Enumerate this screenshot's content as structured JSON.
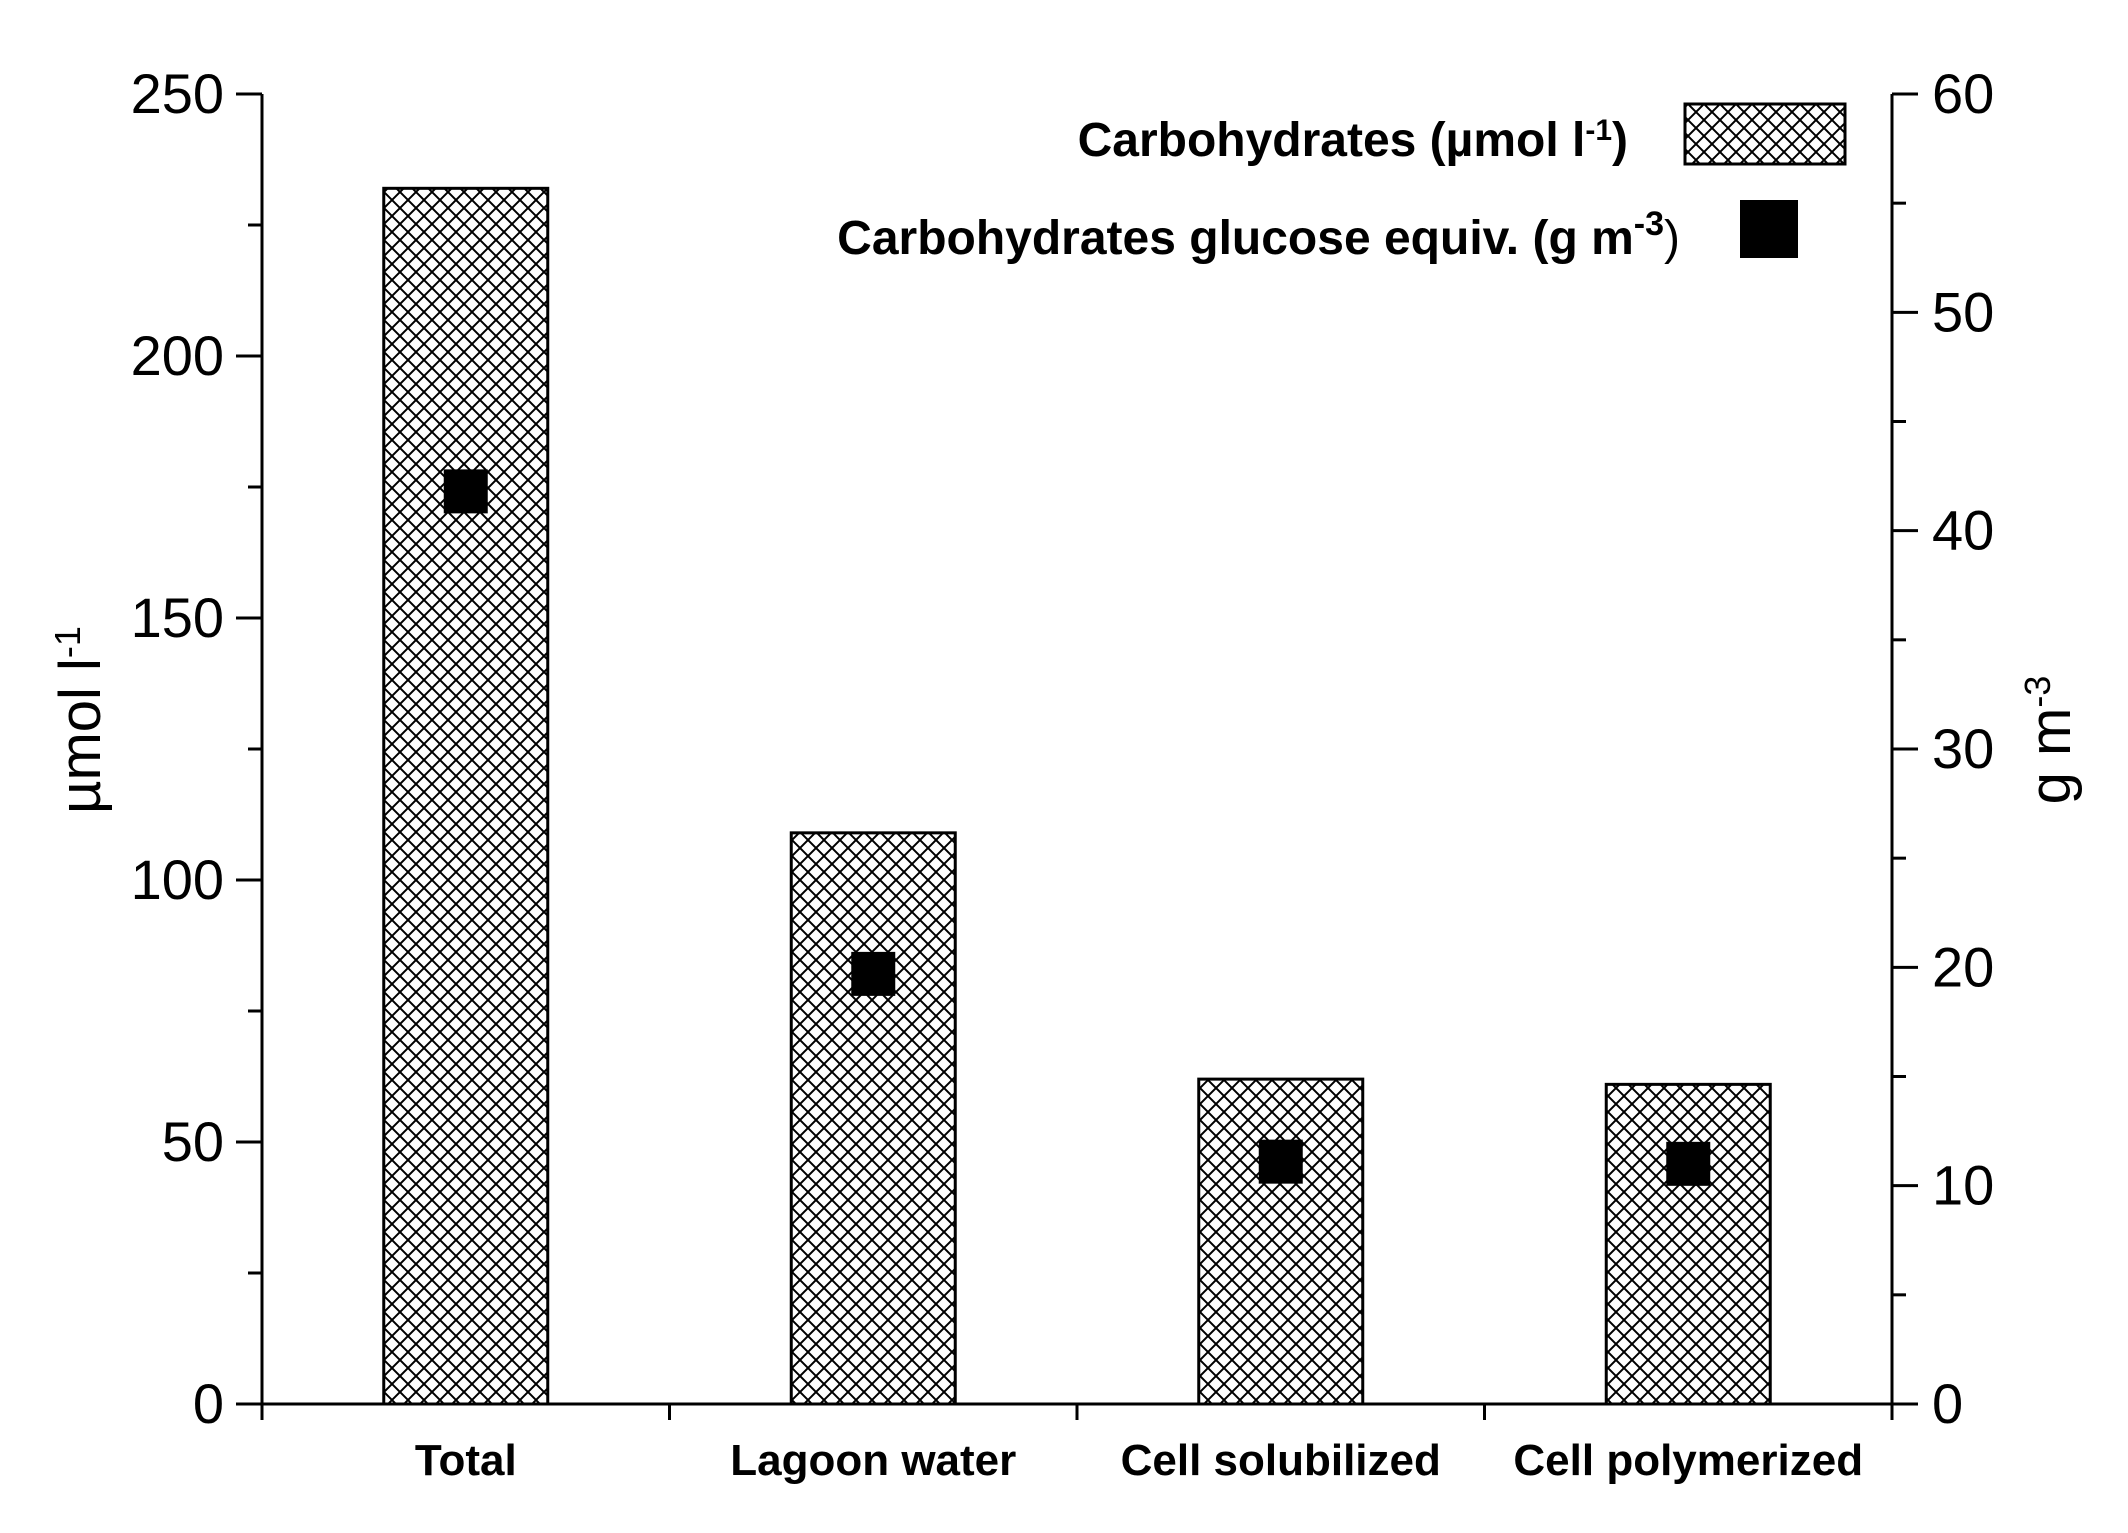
{
  "chart_data": {
    "type": "bar",
    "categories": [
      "Total",
      "Lagoon water",
      "Cell solubilized",
      "Cell polymerized"
    ],
    "series": [
      {
        "name": "Carbohydrates (µmol l-1)",
        "kind": "bar",
        "axis": "left",
        "values": [
          232,
          109,
          62,
          61
        ]
      },
      {
        "name": "Carbohydrates glucose equiv. (g m-3)",
        "kind": "marker",
        "axis": "right",
        "values": [
          41.8,
          19.7,
          11.1,
          11.0
        ]
      }
    ],
    "y_left": {
      "label_main": "µmol l",
      "label_sup": "-1",
      "range": [
        0,
        250
      ],
      "ticks": [
        "0",
        "50",
        "100",
        "150",
        "200",
        "250"
      ]
    },
    "y_right": {
      "label_main": "g m",
      "label_sup": "-3",
      "range": [
        0,
        60
      ],
      "ticks": [
        "0",
        "10",
        "20",
        "30",
        "40",
        "50",
        "60"
      ]
    },
    "legend": {
      "position": "top-right",
      "item1": {
        "text": "Carbohydrates (µmol l",
        "sup": "-1",
        "close": ")"
      },
      "item2": {
        "text": "Carbohydrates glucose equiv. (g m",
        "sup": "-3",
        "close": ")"
      }
    },
    "colors": {
      "bar_fill": "#ffffff",
      "hatch": "#000000",
      "marker": "#000000"
    }
  }
}
